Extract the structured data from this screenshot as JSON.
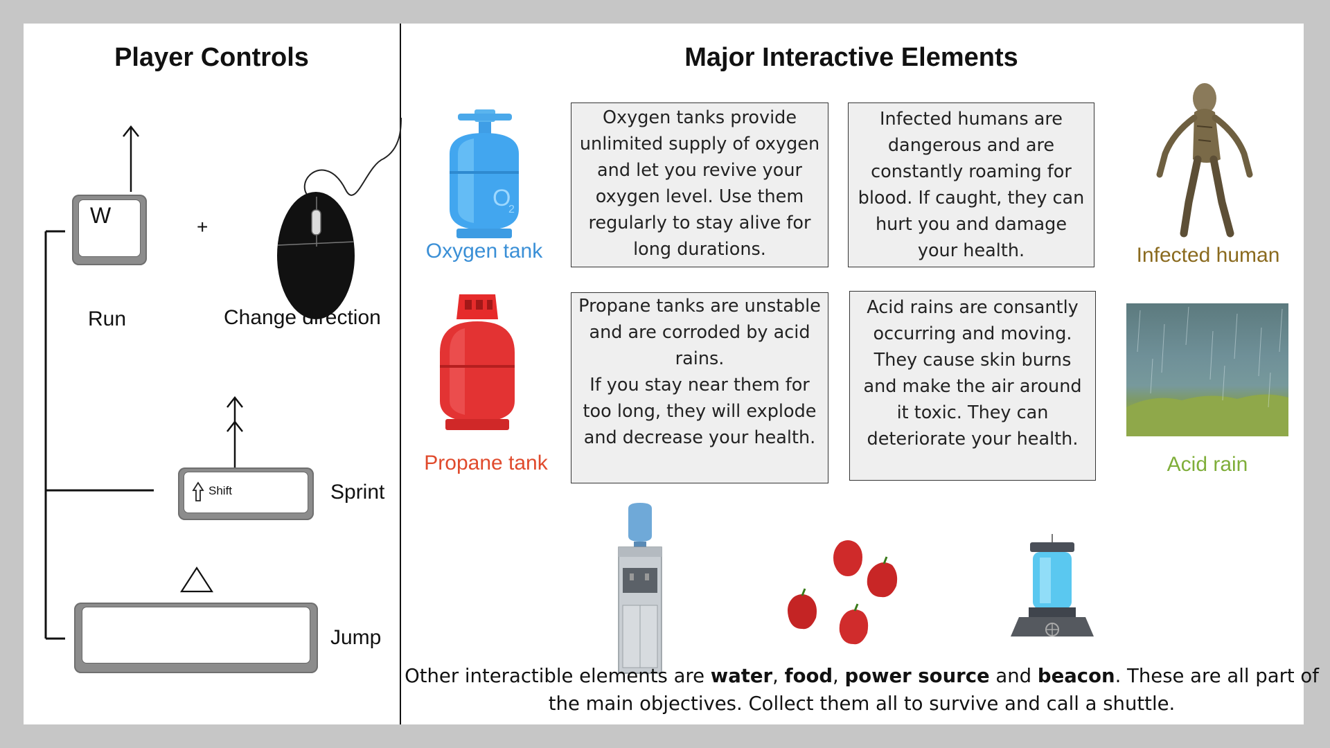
{
  "controls": {
    "title": "Player Controls",
    "w_key": "W",
    "plus": "+",
    "run_label": "Run",
    "change_direction_label": "Change direction",
    "shift_key": "Shift",
    "sprint_label": "Sprint",
    "jump_label": "Jump"
  },
  "elements": {
    "title": "Major Interactive Elements",
    "oxygen": {
      "name": "Oxygen tank",
      "icon_text": "O",
      "icon_sub": "2",
      "color": "#3a8fd6",
      "description": "Oxygen tanks provide unlimited supply of oxygen and let you revive your oxygen level. Use them regularly to stay alive for long durations."
    },
    "infected": {
      "name": "Infected human",
      "color": "#8a6a1e",
      "description": "Infected humans are dangerous and are constantly roaming for blood. If caught, they can hurt you and damage your health."
    },
    "propane": {
      "name": "Propane tank",
      "color": "#e04a2c",
      "description_line1": "Propane tanks are unstable and are corroded by acid rains.",
      "description_line2": "If you stay near them for too long, they will explode and decrease your health."
    },
    "acid": {
      "name": "Acid rain",
      "color": "#7fae3a",
      "description": "Acid rains are consantly occurring and moving. They cause skin burns and make the air around it toxic. They can deteriorate your health."
    }
  },
  "footer": {
    "part1": "Other interactible elements are ",
    "water": "water",
    "sep1": ", ",
    "food": "food",
    "sep2": ", ",
    "power": "power source",
    "and": " and ",
    "beacon": "beacon",
    "part2": ". These are all part of the main objectives. Collect them all to survive and call a shuttle."
  }
}
